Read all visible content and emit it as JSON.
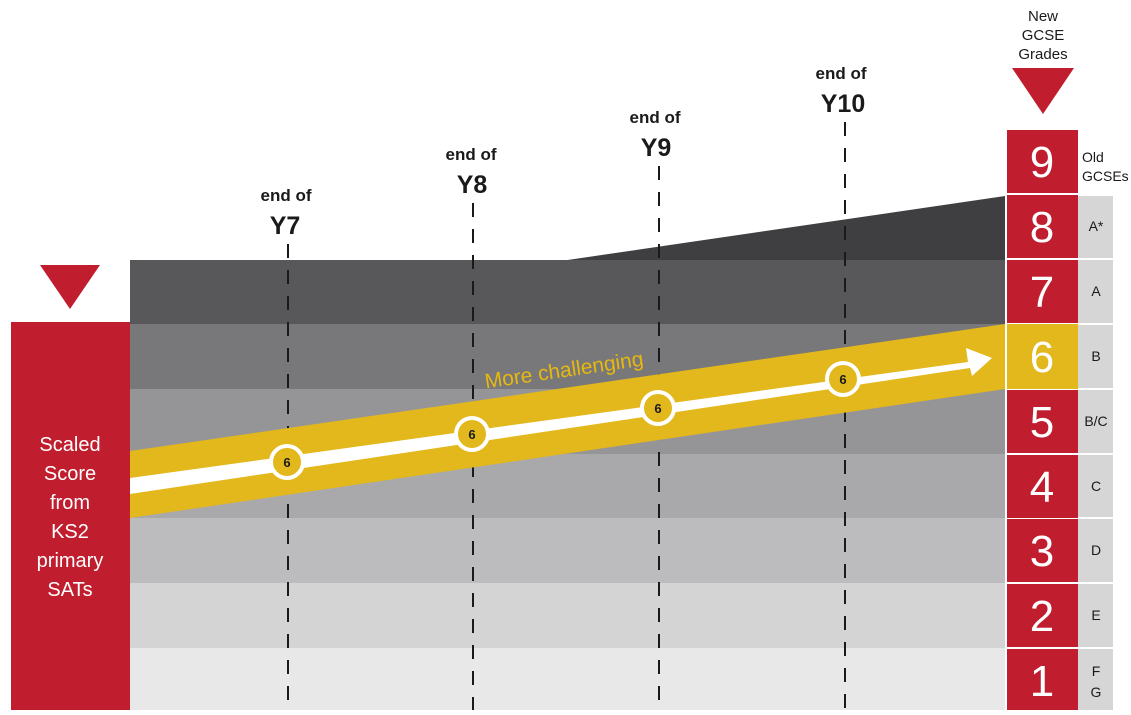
{
  "left_box": {
    "lines": [
      "Scaled",
      "Score",
      "from",
      "KS2",
      "primary",
      "SATs"
    ]
  },
  "year_labels": [
    {
      "prefix": "end of",
      "year": "Y7"
    },
    {
      "prefix": "end of",
      "year": "Y8"
    },
    {
      "prefix": "end of",
      "year": "Y9"
    },
    {
      "prefix": "end of",
      "year": "Y10"
    }
  ],
  "new_grades_header": [
    "New",
    "GCSE",
    "Grades"
  ],
  "old_grades_header": [
    "Old",
    "GCSEs"
  ],
  "grades": [
    {
      "new": "9",
      "old": []
    },
    {
      "new": "8",
      "old": [
        "A*"
      ]
    },
    {
      "new": "7",
      "old": [
        "A"
      ]
    },
    {
      "new": "6",
      "old": [
        "B"
      ]
    },
    {
      "new": "5",
      "old": [
        "B/C"
      ]
    },
    {
      "new": "4",
      "old": [
        "C"
      ]
    },
    {
      "new": "3",
      "old": [
        "D"
      ]
    },
    {
      "new": "2",
      "old": [
        "E"
      ]
    },
    {
      "new": "1",
      "old": [
        "F",
        "G"
      ]
    }
  ],
  "arrow_label": "More challenging",
  "target_marker": "6",
  "colors": {
    "red": "#c01d2e",
    "yellow": "#e2b81c",
    "band_dark": "#4a4a4c",
    "band_light": "#e8e8e9"
  }
}
